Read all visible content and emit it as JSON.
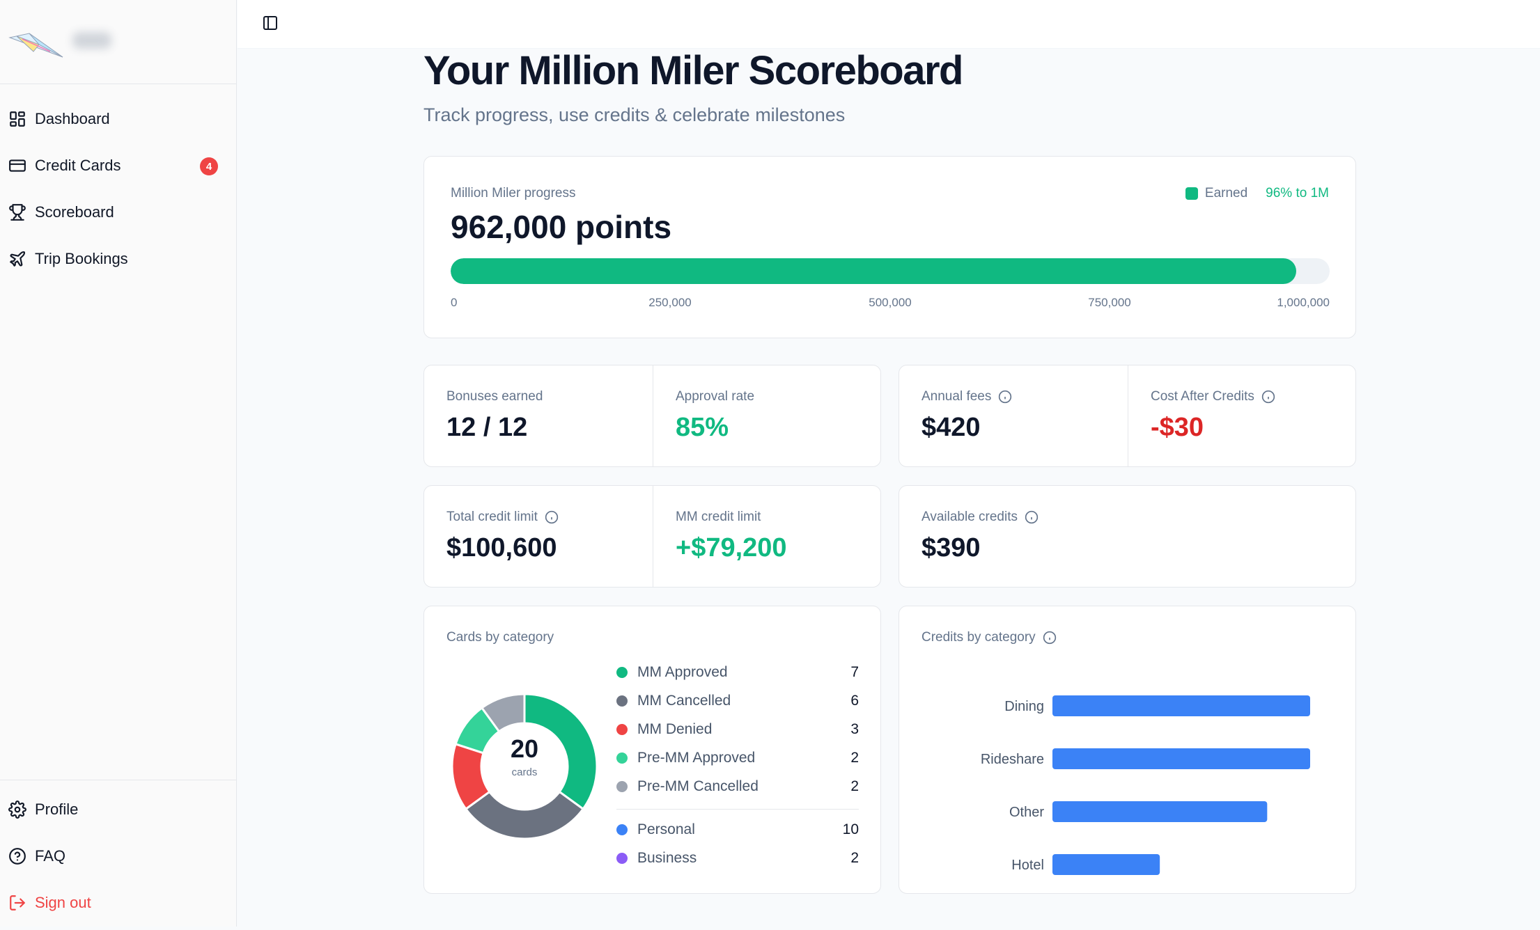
{
  "sidebar": {
    "items": [
      {
        "label": "Dashboard",
        "icon": "dashboard-icon"
      },
      {
        "label": "Credit Cards",
        "icon": "credit-card-icon",
        "badge": "4"
      },
      {
        "label": "Scoreboard",
        "icon": "trophy-icon"
      },
      {
        "label": "Trip Bookings",
        "icon": "plane-icon"
      }
    ],
    "bottom_items": [
      {
        "label": "Profile",
        "icon": "gear-icon"
      },
      {
        "label": "FAQ",
        "icon": "help-circle-icon"
      },
      {
        "label": "Sign out",
        "icon": "log-out-icon"
      }
    ]
  },
  "header": {
    "title": "Your Million Miler Scoreboard",
    "subtitle": "Track progress, use credits & celebrate milestones"
  },
  "progress": {
    "label": "Million Miler progress",
    "value": "962,000 points",
    "legend_label": "Earned",
    "percent_text": "96% to 1M",
    "fraction": 0.962,
    "ticks": [
      "0",
      "250,000",
      "500,000",
      "750,000",
      "1,000,000"
    ]
  },
  "stats": {
    "bonuses": {
      "label": "Bonuses earned",
      "value": "12 / 12"
    },
    "approval": {
      "label": "Approval rate",
      "value": "85%"
    },
    "fees": {
      "label": "Annual fees",
      "value": "$420"
    },
    "cost_after": {
      "label": "Cost After Credits",
      "value": "-$30"
    },
    "total_limit": {
      "label": "Total credit limit",
      "value": "$100,600"
    },
    "mm_limit": {
      "label": "MM credit limit",
      "value": "+$79,200"
    },
    "available": {
      "label": "Available credits",
      "value": "$390"
    }
  },
  "colors": {
    "accent_green": "#10b981",
    "danger_red": "#dc2626",
    "bar_blue": "#3b82f6"
  },
  "chart_data": [
    {
      "type": "pie",
      "title": "Cards by category",
      "center_value": "20",
      "center_label": "cards",
      "categories": [
        "MM Approved",
        "MM Cancelled",
        "MM Denied",
        "Pre-MM Approved",
        "Pre-MM Cancelled"
      ],
      "values": [
        7,
        6,
        3,
        2,
        2
      ],
      "colors": [
        "#10b981",
        "#6b7280",
        "#ef4444",
        "#34d399",
        "#9ca3af"
      ],
      "extra_legend": [
        {
          "name": "Personal",
          "value": 10,
          "color": "#3b82f6"
        },
        {
          "name": "Business",
          "value": 2,
          "color": "#8b5cf6"
        }
      ]
    },
    {
      "type": "bar",
      "orientation": "horizontal",
      "title": "Credits by category",
      "categories": [
        "Dining",
        "Rideshare",
        "Other",
        "Hotel"
      ],
      "values": [
        120,
        120,
        100,
        50
      ],
      "color": "#3b82f6"
    }
  ]
}
